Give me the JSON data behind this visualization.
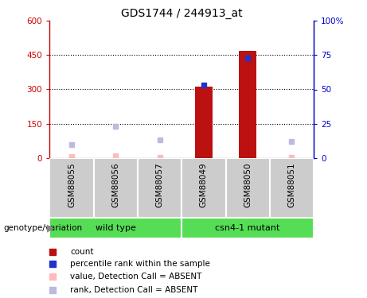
{
  "title": "GDS1744 / 244913_at",
  "samples": [
    "GSM88055",
    "GSM88056",
    "GSM88057",
    "GSM88049",
    "GSM88050",
    "GSM88051"
  ],
  "group_labels": [
    "wild type",
    "csn4-1 mutant"
  ],
  "bar_color": "#bb1111",
  "rank_color": "#2233cc",
  "absent_value_color": "#ffbbbb",
  "absent_rank_color": "#bbbbdd",
  "counts": [
    null,
    null,
    null,
    312,
    467,
    null
  ],
  "ranks": [
    null,
    null,
    null,
    53,
    73,
    null
  ],
  "absent_values": [
    5,
    10,
    4,
    null,
    null,
    3
  ],
  "absent_rank_vals": [
    10,
    23,
    13,
    null,
    null,
    12
  ],
  "ylim_left": [
    0,
    600
  ],
  "ylim_right": [
    0,
    100
  ],
  "yticks_left": [
    0,
    150,
    300,
    450,
    600
  ],
  "yticks_right": [
    0,
    25,
    50,
    75,
    100
  ],
  "left_tick_color": "#cc0000",
  "right_tick_color": "#0000cc",
  "legend_items": [
    {
      "label": "count",
      "color": "#bb1111"
    },
    {
      "label": "percentile rank within the sample",
      "color": "#2233cc"
    },
    {
      "label": "value, Detection Call = ABSENT",
      "color": "#ffbbbb"
    },
    {
      "label": "rank, Detection Call = ABSENT",
      "color": "#bbbbdd"
    }
  ],
  "genotype_label": "genotype/variation",
  "bar_width": 0.4,
  "sample_bg": "#cccccc",
  "green_color": "#55dd55"
}
